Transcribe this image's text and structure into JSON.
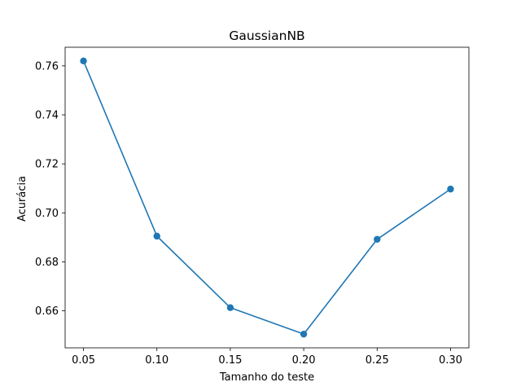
{
  "chart_data": {
    "type": "line",
    "title": "GaussianNB",
    "xlabel": "Tamanho do teste",
    "ylabel": "Acurácia",
    "x": [
      0.05,
      0.1,
      0.15,
      0.2,
      0.25,
      0.3
    ],
    "series": [
      {
        "values": [
          0.762,
          0.6905,
          0.6613,
          0.6505,
          0.6892,
          0.7097
        ],
        "color": "#1f77b4",
        "marker": "circle"
      }
    ],
    "xticks": [
      "0.05",
      "0.10",
      "0.15",
      "0.20",
      "0.25",
      "0.30"
    ],
    "yticks": [
      "0.66",
      "0.68",
      "0.70",
      "0.72",
      "0.74",
      "0.76"
    ],
    "xlim": [
      0.0375,
      0.3125
    ],
    "ylim": [
      0.6449,
      0.7676
    ],
    "grid": false,
    "legend": "none"
  }
}
